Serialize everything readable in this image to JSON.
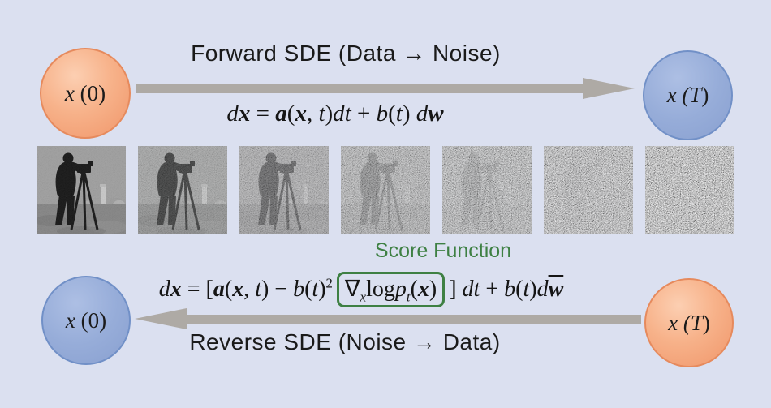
{
  "colors": {
    "background": "#dbe0f0",
    "arrow_gray": "#aeaaa5",
    "accent_green": "#3e8043",
    "node_orange": "#f0966a",
    "node_blue": "#89a0d0",
    "text": "#1a1a1a"
  },
  "forward": {
    "title": "Forward SDE (Data → Noise)"
  },
  "reverse": {
    "title": "Reverse SDE (Noise → Data)"
  },
  "score": {
    "label": "Score Function"
  },
  "nodes": {
    "top_left": [
      {
        "t": "x",
        "s": "i"
      },
      {
        "t": " (0)",
        "s": "r"
      }
    ],
    "top_right": [
      {
        "t": "x",
        "s": "i"
      },
      {
        "t": " (T",
        "s": "i"
      },
      {
        "t": ")",
        "s": "r"
      }
    ],
    "bottom_left": [
      {
        "t": "x",
        "s": "i"
      },
      {
        "t": " (0)",
        "s": "r"
      }
    ],
    "bottom_right": [
      {
        "t": "x",
        "s": "i"
      },
      {
        "t": " (T",
        "s": "i"
      },
      {
        "t": ")",
        "s": "r"
      }
    ]
  },
  "equations": {
    "forward": [
      {
        "t": "d",
        "s": "i"
      },
      {
        "t": "x",
        "s": "bi"
      },
      {
        "t": " = ",
        "s": "r"
      },
      {
        "t": "a",
        "s": "bi"
      },
      {
        "t": "(",
        "s": "r"
      },
      {
        "t": "x",
        "s": "bi"
      },
      {
        "t": ", ",
        "s": "r"
      },
      {
        "t": "t",
        "s": "i"
      },
      {
        "t": ")",
        "s": "r"
      },
      {
        "t": "dt",
        "s": "i"
      },
      {
        "t": " + ",
        "s": "r"
      },
      {
        "t": "b",
        "s": "i"
      },
      {
        "t": "(",
        "s": "r"
      },
      {
        "t": "t",
        "s": "i"
      },
      {
        "t": ") ",
        "s": "r"
      },
      {
        "t": "d",
        "s": "i"
      },
      {
        "t": "w",
        "s": "bi"
      }
    ],
    "reverse_pre": [
      {
        "t": "d",
        "s": "i"
      },
      {
        "t": "x",
        "s": "bi"
      },
      {
        "t": " = [",
        "s": "r"
      },
      {
        "t": "a",
        "s": "bi"
      },
      {
        "t": "(",
        "s": "r"
      },
      {
        "t": "x",
        "s": "bi"
      },
      {
        "t": ", ",
        "s": "r"
      },
      {
        "t": "t",
        "s": "i"
      },
      {
        "t": ") − ",
        "s": "r"
      },
      {
        "t": "b",
        "s": "i"
      },
      {
        "t": "(",
        "s": "r"
      },
      {
        "t": "t",
        "s": "i"
      },
      {
        "t": ")",
        "s": "r"
      },
      {
        "t": "2",
        "s": "sup"
      }
    ],
    "reverse_box": [
      {
        "t": "∇",
        "s": "r"
      },
      {
        "t": "x",
        "s": "sub"
      },
      {
        "t": "log",
        "s": "r"
      },
      {
        "t": "p",
        "s": "i"
      },
      {
        "t": "t",
        "s": "sub"
      },
      {
        "t": "(",
        "s": "r"
      },
      {
        "t": "x",
        "s": "bi"
      },
      {
        "t": ")",
        "s": "r"
      }
    ],
    "reverse_post": [
      {
        "t": "] ",
        "s": "r"
      },
      {
        "t": "dt",
        "s": "i"
      },
      {
        "t": " + ",
        "s": "r"
      },
      {
        "t": "b",
        "s": "i"
      },
      {
        "t": "(",
        "s": "r"
      },
      {
        "t": "t",
        "s": "i"
      },
      {
        "t": ")",
        "s": "r"
      },
      {
        "t": "d",
        "s": "i"
      },
      {
        "t": "w",
        "s": "bibar"
      }
    ]
  },
  "images": [
    {
      "label": "cameraman noise level 1 of 7",
      "washout": 0,
      "noise": 0.06
    },
    {
      "label": "cameraman noise level 2 of 7",
      "washout": 0.15,
      "noise": 0.22
    },
    {
      "label": "cameraman noise level 3 of 7",
      "washout": 0.3,
      "noise": 0.38
    },
    {
      "label": "cameraman noise level 4 of 7",
      "washout": 0.52,
      "noise": 0.55
    },
    {
      "label": "cameraman noise level 5 of 7",
      "washout": 0.68,
      "noise": 0.68
    },
    {
      "label": "cameraman noise level 6 of 7",
      "washout": 0.85,
      "noise": 0.8
    },
    {
      "label": "cameraman noise level 7 of 7",
      "washout": 1.0,
      "noise": 0.9
    }
  ]
}
